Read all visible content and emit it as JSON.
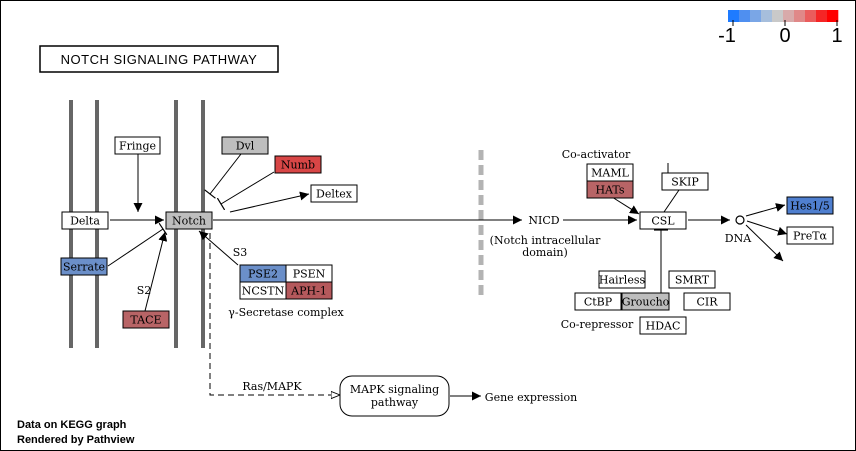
{
  "title": "NOTCH SIGNALING PATHWAY",
  "legend": {
    "min_label": "-1",
    "mid_label": "0",
    "max_label": "1",
    "colors": [
      "#1e7bff",
      "#4f8ff0",
      "#7aa6e6",
      "#a6bedc",
      "#c9c9c9",
      "#d8aaaa",
      "#e08888",
      "#ea5c5c",
      "#f52525",
      "#ff0000"
    ]
  },
  "footer": {
    "line1": "Data on KEGG graph",
    "line2": "Rendered by Pathview"
  },
  "colors": {
    "white": "#ffffff",
    "gray": "#bebebe",
    "blue": "#6b8fc9",
    "blue_dark": "#4f7fcf",
    "red": "#d84646",
    "red_mid": "#b5595c",
    "red_soft": "#b86466",
    "separator": "#b3b3b3",
    "membrane": "#666666"
  },
  "nodes": {
    "fringe": "Fringe",
    "delta": "Delta",
    "serrate": "Serrate",
    "notch": "Notch",
    "tace": "TACE",
    "dvl": "Dvl",
    "numb": "Numb",
    "deltex": "Deltex",
    "pse2": "PSE2",
    "psen": "PSEN",
    "ncstn": "NCSTN",
    "aph1": "APH-1",
    "maml": "MAML",
    "hats": "HATs",
    "skip": "SKIP",
    "csl": "CSL",
    "hes15": "Hes1/5",
    "pretalpha": "PreTα",
    "hairless": "Hairless",
    "smrt": "SMRT",
    "ctbp": "CtBP",
    "groucho": "Groucho",
    "cir": "CIR",
    "hdac": "HDAC"
  },
  "labels": {
    "s2": "S2",
    "s3": "S3",
    "gamma_secretase": "γ-Secretase complex",
    "nicd": "NICD",
    "nicd_desc1": "(Notch intracellular",
    "nicd_desc2": "domain)",
    "coactivator": "Co-activator",
    "corepressor": "Co-repressor",
    "dna": "DNA",
    "ras_mapk": "Ras/MAPK",
    "mapk_line1": "MAPK signaling",
    "mapk_line2": "pathway",
    "gene_expression": "Gene expression"
  }
}
